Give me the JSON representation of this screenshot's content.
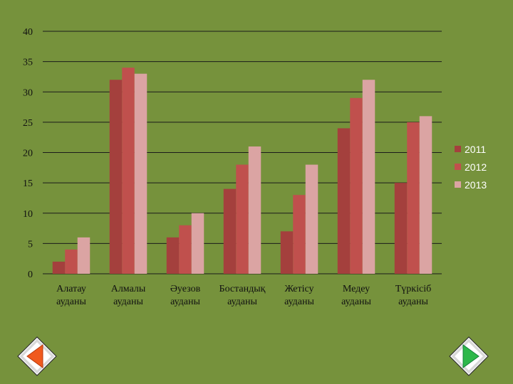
{
  "chart_data": {
    "type": "bar",
    "title": "",
    "xlabel": "",
    "ylabel": "",
    "categories": [
      [
        "Алатау",
        "ауданы"
      ],
      [
        "Алмалы",
        "ауданы"
      ],
      [
        "Әуезов",
        "ауданы"
      ],
      [
        "Бостандық",
        "ауданы"
      ],
      [
        "Жетісу",
        "ауданы"
      ],
      [
        "Медеу",
        "ауданы"
      ],
      [
        "Түркісіб",
        "ауданы"
      ]
    ],
    "series": [
      {
        "name": "2011",
        "color": "#a4403d",
        "values": [
          2,
          32,
          6,
          14,
          7,
          24,
          15
        ]
      },
      {
        "name": "2012",
        "color": "#c0504d",
        "values": [
          4,
          34,
          8,
          18,
          13,
          29,
          25
        ]
      },
      {
        "name": "2013",
        "color": "#dba4a3",
        "values": [
          6,
          33,
          10,
          21,
          18,
          32,
          26
        ]
      }
    ],
    "ylim": [
      0,
      40
    ],
    "yticks": [
      0,
      5,
      10,
      15,
      20,
      25,
      30,
      35,
      40
    ],
    "grid": true,
    "legend_position": "right"
  },
  "colors": {
    "background": "#76923c",
    "gridline": "#1a1a1a",
    "text": "#111111",
    "legend_text": "#ffffff"
  },
  "nav": {
    "prev_icon": "triangle-left-icon",
    "next_icon": "triangle-right-icon"
  }
}
